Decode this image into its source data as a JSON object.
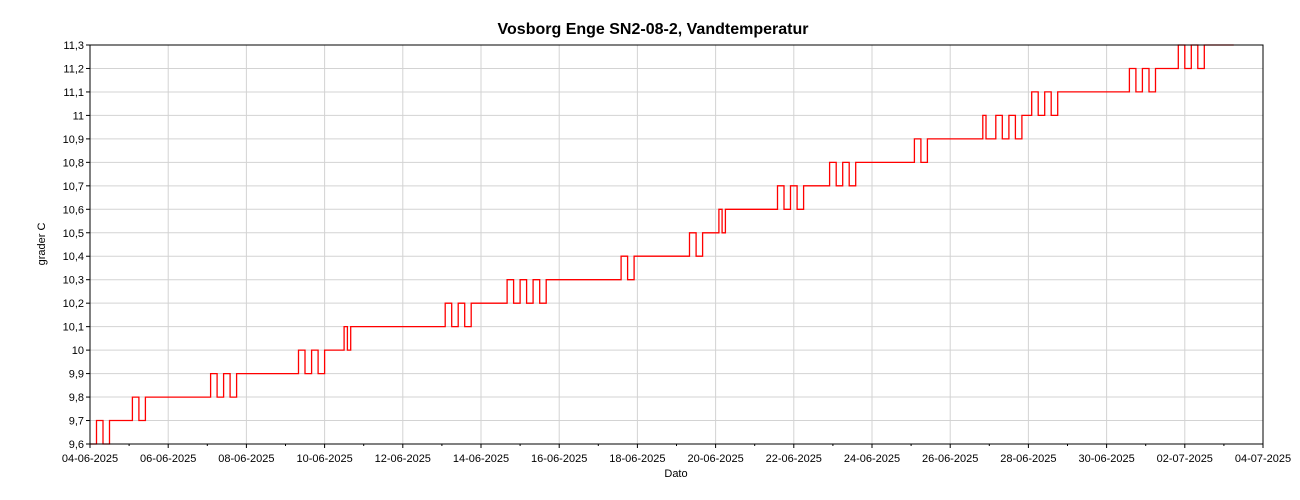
{
  "chart_data": {
    "type": "line",
    "title": "Vosborg Enge SN2-08-2, Vandtemperatur",
    "xlabel": "Dato",
    "ylabel": "grader C",
    "xlim": [
      "2025-06-04",
      "2025-07-04"
    ],
    "ylim": [
      9.6,
      11.3
    ],
    "grid": true,
    "legend": "none",
    "x_tick_labels": [
      "04-06-2025",
      "06-06-2025",
      "08-06-2025",
      "10-06-2025",
      "12-06-2025",
      "14-06-2025",
      "16-06-2025",
      "18-06-2025",
      "20-06-2025",
      "22-06-2025",
      "24-06-2025",
      "26-06-2025",
      "28-06-2025",
      "30-06-2025",
      "02-07-2025",
      "04-07-2025"
    ],
    "y_tick_labels": [
      "9,6",
      "9,7",
      "9,8",
      "9,9",
      "10",
      "10,1",
      "10,2",
      "10,3",
      "10,4",
      "10,5",
      "10,6",
      "10,7",
      "10,8",
      "10,9",
      "11",
      "11,1",
      "11,2",
      "11,3"
    ],
    "series": [
      {
        "color": "#ff0000",
        "points": [
          [
            "2025-06-04 00:00",
            9.6
          ],
          [
            "2025-06-04 04:00",
            9.7
          ],
          [
            "2025-06-04 08:00",
            9.6
          ],
          [
            "2025-06-04 12:00",
            9.7
          ],
          [
            "2025-06-04 16:00",
            9.7
          ],
          [
            "2025-06-05 00:00",
            9.7
          ],
          [
            "2025-06-05 02:00",
            9.8
          ],
          [
            "2025-06-05 06:00",
            9.7
          ],
          [
            "2025-06-05 10:00",
            9.8
          ],
          [
            "2025-06-05 14:00",
            9.8
          ],
          [
            "2025-06-06 12:00",
            9.8
          ],
          [
            "2025-06-07 00:00",
            9.8
          ],
          [
            "2025-06-07 02:00",
            9.9
          ],
          [
            "2025-06-07 06:00",
            9.8
          ],
          [
            "2025-06-07 10:00",
            9.9
          ],
          [
            "2025-06-07 14:00",
            9.8
          ],
          [
            "2025-06-07 18:00",
            9.9
          ],
          [
            "2025-06-08 12:00",
            9.9
          ],
          [
            "2025-06-09 06:00",
            9.9
          ],
          [
            "2025-06-09 08:00",
            10.0
          ],
          [
            "2025-06-09 12:00",
            9.9
          ],
          [
            "2025-06-09 16:00",
            10.0
          ],
          [
            "2025-06-09 20:00",
            9.9
          ],
          [
            "2025-06-10 00:00",
            10.0
          ],
          [
            "2025-06-10 10:00",
            10.0
          ],
          [
            "2025-06-10 12:00",
            10.1
          ],
          [
            "2025-06-10 14:00",
            10.0
          ],
          [
            "2025-06-10 16:00",
            10.1
          ],
          [
            "2025-06-12 00:00",
            10.1
          ],
          [
            "2025-06-13 00:00",
            10.1
          ],
          [
            "2025-06-13 02:00",
            10.2
          ],
          [
            "2025-06-13 06:00",
            10.1
          ],
          [
            "2025-06-13 10:00",
            10.2
          ],
          [
            "2025-06-13 14:00",
            10.1
          ],
          [
            "2025-06-13 18:00",
            10.2
          ],
          [
            "2025-06-14 12:00",
            10.2
          ],
          [
            "2025-06-14 16:00",
            10.3
          ],
          [
            "2025-06-14 20:00",
            10.2
          ],
          [
            "2025-06-15 00:00",
            10.3
          ],
          [
            "2025-06-15 04:00",
            10.2
          ],
          [
            "2025-06-15 08:00",
            10.3
          ],
          [
            "2025-06-15 12:00",
            10.2
          ],
          [
            "2025-06-15 16:00",
            10.3
          ],
          [
            "2025-06-16 12:00",
            10.3
          ],
          [
            "2025-06-17 12:00",
            10.3
          ],
          [
            "2025-06-17 14:00",
            10.4
          ],
          [
            "2025-06-17 18:00",
            10.3
          ],
          [
            "2025-06-17 22:00",
            10.4
          ],
          [
            "2025-06-18 12:00",
            10.4
          ],
          [
            "2025-06-19 06:00",
            10.4
          ],
          [
            "2025-06-19 08:00",
            10.5
          ],
          [
            "2025-06-19 12:00",
            10.4
          ],
          [
            "2025-06-19 16:00",
            10.5
          ],
          [
            "2025-06-20 00:00",
            10.5
          ],
          [
            "2025-06-20 02:00",
            10.6
          ],
          [
            "2025-06-20 04:00",
            10.5
          ],
          [
            "2025-06-20 06:00",
            10.6
          ],
          [
            "2025-06-21 00:00",
            10.6
          ],
          [
            "2025-06-21 12:00",
            10.6
          ],
          [
            "2025-06-21 14:00",
            10.7
          ],
          [
            "2025-06-21 18:00",
            10.6
          ],
          [
            "2025-06-21 22:00",
            10.7
          ],
          [
            "2025-06-22 02:00",
            10.6
          ],
          [
            "2025-06-22 06:00",
            10.7
          ],
          [
            "2025-06-22 20:00",
            10.7
          ],
          [
            "2025-06-22 22:00",
            10.8
          ],
          [
            "2025-06-23 02:00",
            10.7
          ],
          [
            "2025-06-23 06:00",
            10.8
          ],
          [
            "2025-06-23 10:00",
            10.7
          ],
          [
            "2025-06-23 14:00",
            10.8
          ],
          [
            "2025-06-24 12:00",
            10.8
          ],
          [
            "2025-06-25 00:00",
            10.8
          ],
          [
            "2025-06-25 02:00",
            10.9
          ],
          [
            "2025-06-25 06:00",
            10.8
          ],
          [
            "2025-06-25 10:00",
            10.9
          ],
          [
            "2025-06-26 12:00",
            10.9
          ],
          [
            "2025-06-26 18:00",
            10.9
          ],
          [
            "2025-06-26 20:00",
            11.0
          ],
          [
            "2025-06-26 22:00",
            10.9
          ],
          [
            "2025-06-27 04:00",
            11.0
          ],
          [
            "2025-06-27 08:00",
            10.9
          ],
          [
            "2025-06-27 12:00",
            11.0
          ],
          [
            "2025-06-27 16:00",
            10.9
          ],
          [
            "2025-06-27 20:00",
            11.0
          ],
          [
            "2025-06-28 00:00",
            11.0
          ],
          [
            "2025-06-28 02:00",
            11.1
          ],
          [
            "2025-06-28 06:00",
            11.0
          ],
          [
            "2025-06-28 10:00",
            11.1
          ],
          [
            "2025-06-28 14:00",
            11.0
          ],
          [
            "2025-06-28 18:00",
            11.1
          ],
          [
            "2025-06-29 12:00",
            11.1
          ],
          [
            "2025-06-30 12:00",
            11.1
          ],
          [
            "2025-06-30 14:00",
            11.2
          ],
          [
            "2025-06-30 18:00",
            11.1
          ],
          [
            "2025-06-30 22:00",
            11.2
          ],
          [
            "2025-07-01 02:00",
            11.1
          ],
          [
            "2025-07-01 06:00",
            11.2
          ],
          [
            "2025-07-01 18:00",
            11.2
          ],
          [
            "2025-07-01 20:00",
            11.3
          ],
          [
            "2025-07-02 00:00",
            11.2
          ],
          [
            "2025-07-02 04:00",
            11.3
          ],
          [
            "2025-07-02 08:00",
            11.2
          ],
          [
            "2025-07-02 12:00",
            11.3
          ],
          [
            "2025-07-03 06:00",
            11.3
          ]
        ]
      }
    ]
  }
}
